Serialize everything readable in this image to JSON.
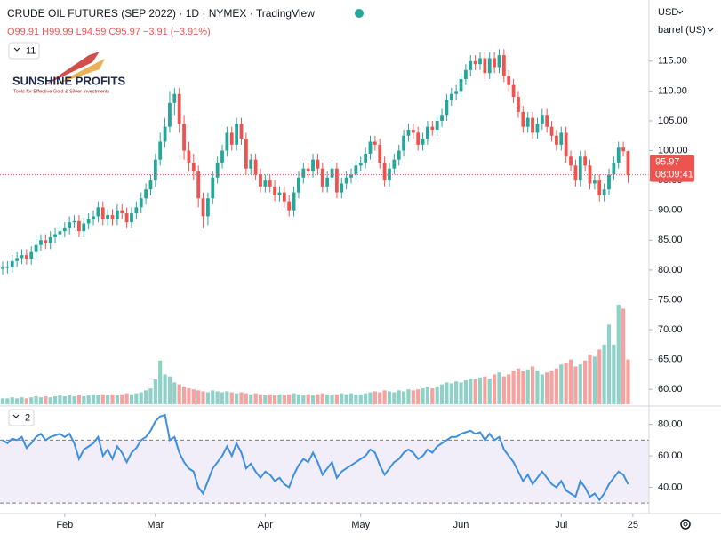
{
  "header": {
    "title": "CRUDE OIL FUTURES (SEP 2022) · 1D · NYMEX · TradingView",
    "ohlc": "O99.91 H99.99 L94.59 C95.97 −3.91 (−3.91%)",
    "currency": "USD",
    "unit": "barrel (US)",
    "indicator_count": 11,
    "logo_title": "SUNSHINE PROFITS",
    "logo_tagline": "Tools for Effective Gold & Silver Investments",
    "countdown": "08:09:41"
  },
  "chart_data": [
    {
      "type": "candlestick",
      "up_color": "#26a69a",
      "down_color": "#ef5350",
      "volume_up_color": "#8fd1c6",
      "volume_down_color": "#f5a3a0",
      "open": [
        80.2,
        80.4,
        80.5,
        81.5,
        82.0,
        82.5,
        81.9,
        83.0,
        84.2,
        85.0,
        84.5,
        85.5,
        86.0,
        86.5,
        87.0,
        88.0,
        88.2,
        86.5,
        87.8,
        88.5,
        89.0,
        90.5,
        88.5,
        89.2,
        88.5,
        90.0,
        89.5,
        88.0,
        89.5,
        90.5,
        92.0,
        93.5,
        95.0,
        98.5,
        101.5,
        104.0,
        108.0,
        109.5,
        104.5,
        100.0,
        98.0,
        96.5,
        92.0,
        89.0,
        92.0,
        95.5,
        98.0,
        100.0,
        103.0,
        101.0,
        104.5,
        102.0,
        97.0,
        98.5,
        96.0,
        94.0,
        95.0,
        94.0,
        92.5,
        93.0,
        91.5,
        90.0,
        93.0,
        95.5,
        97.0,
        96.5,
        98.5,
        97.0,
        94.0,
        95.5,
        97.0,
        93.0,
        94.5,
        95.5,
        96.0,
        97.5,
        98.0,
        99.5,
        101.5,
        101.0,
        98.0,
        95.0,
        97.0,
        98.5,
        100.0,
        102.5,
        103.5,
        103.0,
        101.0,
        102.0,
        104.0,
        103.5,
        105.0,
        106.0,
        108.5,
        109.5,
        110.0,
        112.0,
        113.5,
        115.0,
        114.5,
        115.5,
        113.0,
        115.5,
        114.0,
        116.0,
        112.5,
        111.0,
        109.0,
        106.5,
        104.0,
        105.5,
        103.0,
        104.5,
        106.0,
        104.0,
        102.5,
        101.0,
        103.0,
        99.0,
        97.5,
        95.0,
        99.0,
        97.5,
        94.5,
        95.0,
        92.5,
        93.5,
        96.0,
        98.0,
        100.5,
        99.91
      ],
      "high": [
        81.4,
        81.5,
        82.5,
        83.0,
        83.5,
        83.5,
        84.0,
        85.2,
        86.0,
        86.0,
        86.5,
        87.0,
        87.5,
        88.0,
        89.0,
        89.2,
        89.2,
        88.8,
        89.5,
        90.0,
        91.5,
        91.5,
        90.2,
        90.2,
        91.0,
        91.0,
        90.5,
        90.5,
        91.5,
        93.0,
        94.5,
        96.0,
        99.5,
        103.0,
        105.5,
        110.0,
        110.5,
        110.5,
        106.0,
        101.5,
        99.5,
        97.5,
        93.0,
        93.0,
        96.5,
        99.0,
        101.0,
        104.0,
        104.0,
        105.5,
        105.5,
        103.0,
        99.5,
        99.5,
        97.0,
        96.0,
        96.0,
        95.0,
        94.0,
        94.0,
        92.5,
        94.0,
        96.5,
        98.0,
        98.0,
        99.5,
        99.5,
        98.0,
        96.5,
        98.0,
        98.0,
        95.5,
        96.5,
        97.0,
        98.5,
        99.0,
        100.5,
        102.5,
        102.5,
        102.0,
        99.0,
        98.0,
        99.5,
        101.0,
        103.5,
        104.5,
        104.5,
        104.0,
        103.0,
        105.0,
        105.0,
        106.0,
        107.0,
        109.5,
        110.5,
        111.0,
        113.0,
        114.5,
        116.0,
        116.0,
        116.5,
        116.5,
        116.5,
        116.5,
        117.0,
        117.0,
        113.5,
        112.0,
        110.0,
        107.5,
        106.5,
        106.5,
        105.5,
        107.0,
        107.0,
        105.0,
        103.5,
        104.0,
        104.0,
        100.0,
        98.5,
        100.0,
        100.0,
        98.5,
        96.0,
        96.0,
        94.5,
        97.0,
        99.0,
        101.5,
        101.5,
        99.99
      ],
      "low": [
        79.2,
        79.4,
        79.5,
        80.5,
        81.0,
        80.9,
        80.9,
        82.0,
        83.2,
        83.5,
        83.5,
        84.5,
        85.0,
        85.5,
        86.0,
        87.0,
        85.5,
        85.5,
        86.8,
        87.5,
        88.0,
        87.5,
        87.5,
        87.5,
        87.5,
        88.5,
        87.0,
        87.0,
        88.5,
        89.5,
        91.0,
        92.5,
        94.0,
        97.5,
        100.5,
        103.0,
        106.0,
        103.0,
        98.5,
        96.5,
        95.0,
        90.5,
        87.0,
        87.5,
        91.0,
        94.5,
        97.0,
        99.0,
        100.0,
        100.0,
        101.0,
        96.0,
        96.0,
        95.0,
        93.0,
        93.0,
        93.0,
        91.5,
        91.5,
        90.5,
        89.0,
        89.0,
        92.0,
        94.5,
        95.5,
        95.5,
        96.0,
        93.0,
        93.0,
        94.5,
        92.0,
        92.0,
        93.5,
        94.5,
        95.0,
        96.5,
        97.0,
        98.5,
        100.0,
        97.0,
        94.0,
        94.0,
        96.0,
        97.5,
        99.0,
        101.5,
        102.0,
        100.0,
        100.0,
        101.0,
        102.5,
        102.5,
        104.0,
        105.0,
        107.5,
        108.5,
        109.0,
        111.0,
        112.5,
        113.5,
        113.5,
        112.0,
        112.0,
        113.0,
        113.0,
        111.5,
        110.0,
        108.0,
        105.5,
        103.0,
        103.0,
        102.0,
        102.0,
        103.5,
        103.0,
        101.5,
        100.0,
        100.0,
        98.0,
        96.5,
        94.0,
        94.0,
        96.5,
        93.5,
        93.5,
        91.5,
        91.5,
        92.5,
        95.0,
        97.0,
        99.0,
        94.59
      ],
      "close": [
        80.4,
        80.5,
        81.5,
        82.0,
        82.5,
        81.9,
        83.0,
        84.2,
        85.0,
        84.5,
        85.5,
        86.0,
        86.5,
        87.0,
        88.0,
        88.2,
        86.5,
        87.8,
        88.5,
        89.0,
        90.5,
        88.5,
        89.2,
        88.5,
        90.0,
        89.5,
        88.0,
        89.5,
        90.5,
        92.0,
        93.5,
        95.0,
        98.5,
        101.5,
        104.0,
        108.0,
        109.5,
        104.5,
        100.0,
        98.0,
        96.5,
        92.0,
        89.0,
        92.0,
        95.5,
        98.0,
        100.0,
        103.0,
        101.0,
        104.5,
        102.0,
        97.0,
        98.5,
        96.0,
        94.0,
        95.0,
        94.0,
        92.5,
        93.0,
        91.5,
        90.0,
        93.0,
        95.5,
        97.0,
        96.5,
        98.5,
        97.0,
        94.0,
        95.5,
        97.0,
        93.0,
        94.5,
        95.5,
        96.0,
        97.5,
        98.0,
        99.5,
        101.5,
        101.0,
        98.0,
        95.0,
        97.0,
        98.5,
        100.0,
        102.5,
        103.5,
        103.0,
        101.0,
        102.0,
        104.0,
        103.5,
        105.0,
        106.0,
        108.5,
        109.5,
        110.0,
        112.0,
        113.5,
        115.0,
        114.5,
        115.5,
        113.0,
        115.5,
        114.0,
        116.0,
        112.5,
        111.0,
        109.0,
        106.5,
        104.0,
        105.5,
        103.0,
        104.5,
        106.0,
        104.0,
        102.5,
        101.0,
        103.0,
        99.0,
        97.5,
        95.0,
        99.0,
        97.5,
        94.5,
        95.0,
        92.5,
        93.5,
        96.0,
        98.0,
        100.5,
        99.9,
        95.97
      ],
      "volume": [
        6,
        6,
        7,
        6,
        7,
        6,
        7,
        8,
        7,
        8,
        7,
        8,
        9,
        8,
        9,
        8,
        9,
        8,
        9,
        10,
        9,
        10,
        9,
        10,
        9,
        10,
        11,
        10,
        11,
        12,
        14,
        16,
        25,
        44,
        30,
        28,
        22,
        20,
        18,
        16,
        15,
        14,
        13,
        12,
        14,
        13,
        12,
        13,
        12,
        11,
        12,
        11,
        10,
        11,
        10,
        9,
        10,
        9,
        10,
        9,
        10,
        11,
        10,
        9,
        10,
        9,
        10,
        11,
        10,
        9,
        10,
        11,
        10,
        11,
        10,
        10,
        11,
        12,
        13,
        12,
        14,
        13,
        12,
        14,
        13,
        15,
        14,
        15,
        16,
        17,
        16,
        18,
        20,
        22,
        21,
        23,
        22,
        24,
        26,
        25,
        27,
        28,
        26,
        30,
        32,
        28,
        30,
        34,
        36,
        33,
        35,
        38,
        34,
        30,
        32,
        34,
        36,
        40,
        42,
        45,
        38,
        40,
        44,
        50,
        48,
        55,
        60,
        80,
        60,
        100,
        96,
        45
      ],
      "last_price": 95.97,
      "ylim": [
        57.5,
        124.5
      ],
      "yticks": [
        {
          "value": 60,
          "label": "60.00"
        },
        {
          "value": 65,
          "label": "65.00"
        },
        {
          "value": 70,
          "label": "70.00"
        },
        {
          "value": 75,
          "label": "75.00"
        },
        {
          "value": 80,
          "label": "80.00"
        },
        {
          "value": 85,
          "label": "85.00"
        },
        {
          "value": 90,
          "label": "90.00"
        },
        {
          "value": 95,
          "label": "95.00"
        },
        {
          "value": 100,
          "label": "100.00"
        },
        {
          "value": 105,
          "label": "105.00"
        },
        {
          "value": 110,
          "label": "110.00"
        },
        {
          "value": 115,
          "label": "115.00"
        }
      ],
      "xticks": [
        {
          "value": 13,
          "label": "Feb"
        },
        {
          "value": 32,
          "label": "Mar"
        },
        {
          "value": 55,
          "label": "Apr"
        },
        {
          "value": 75,
          "label": "May"
        },
        {
          "value": 96,
          "label": "Jun"
        },
        {
          "value": 117,
          "label": "Jul"
        },
        {
          "value": 132,
          "label": "25"
        }
      ]
    },
    {
      "type": "line",
      "indicator_count": 2,
      "color": "#3d8fe0",
      "band_color": "#7e57c2",
      "bands": [
        30,
        70
      ],
      "values": [
        70,
        68,
        71,
        70,
        72,
        65,
        68,
        72,
        74,
        70,
        72,
        73,
        74,
        72,
        74,
        68,
        58,
        64,
        66,
        68,
        72,
        60,
        64,
        58,
        66,
        62,
        56,
        62,
        65,
        70,
        72,
        76,
        82,
        85,
        86,
        70,
        72,
        62,
        56,
        52,
        50,
        40,
        36,
        44,
        52,
        56,
        60,
        66,
        60,
        68,
        62,
        52,
        55,
        50,
        46,
        50,
        48,
        44,
        46,
        42,
        40,
        48,
        54,
        58,
        56,
        62,
        56,
        48,
        52,
        56,
        46,
        50,
        52,
        54,
        56,
        58,
        60,
        64,
        62,
        54,
        48,
        52,
        56,
        58,
        62,
        64,
        62,
        58,
        60,
        64,
        62,
        66,
        68,
        70,
        72,
        72,
        74,
        75,
        76,
        74,
        75,
        70,
        74,
        70,
        72,
        64,
        60,
        56,
        50,
        44,
        48,
        42,
        46,
        50,
        46,
        42,
        40,
        44,
        38,
        36,
        34,
        44,
        40,
        34,
        36,
        32,
        36,
        42,
        46,
        50,
        48,
        42
      ],
      "ylim": [
        25,
        90
      ],
      "yticks": [
        {
          "value": 40,
          "label": "40.00"
        },
        {
          "value": 60,
          "label": "60.00"
        },
        {
          "value": 80,
          "label": "80.00"
        }
      ]
    }
  ]
}
